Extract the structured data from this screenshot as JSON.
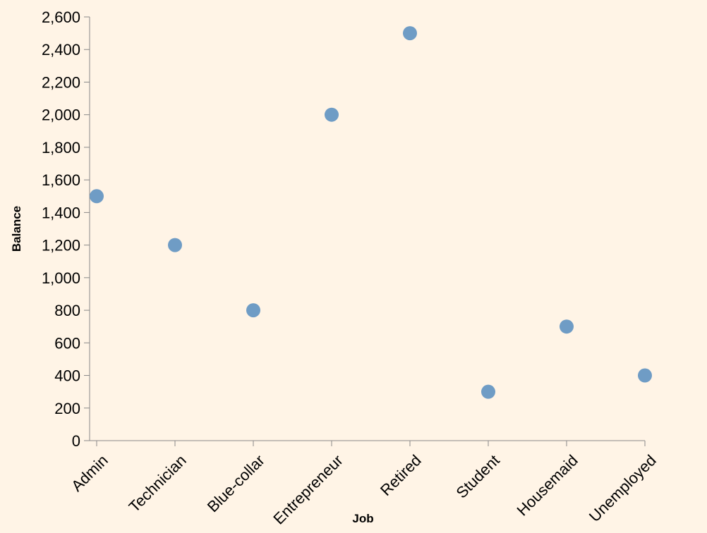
{
  "chart_data": {
    "type": "scatter",
    "categories": [
      "Admin",
      "Technician",
      "Blue-collar",
      "Entrepreneur",
      "Retired",
      "Student",
      "Housemaid",
      "Unemployed"
    ],
    "series": [
      {
        "values": [
          1500,
          1200,
          800,
          2000,
          2500,
          300,
          700,
          400
        ]
      }
    ],
    "xlabel": "Job",
    "ylabel": "Balance",
    "ylim": [
      0,
      2600
    ],
    "yticks": [
      "0",
      "200",
      "400",
      "600",
      "800",
      "1,000",
      "1,200",
      "1,400",
      "1,600",
      "1,800",
      "2,000",
      "2,200",
      "2,400",
      "2,600"
    ],
    "grid": false,
    "colors": {
      "point": "#6f9cc5",
      "background": "#fff4e6",
      "axis": "#888888"
    }
  }
}
